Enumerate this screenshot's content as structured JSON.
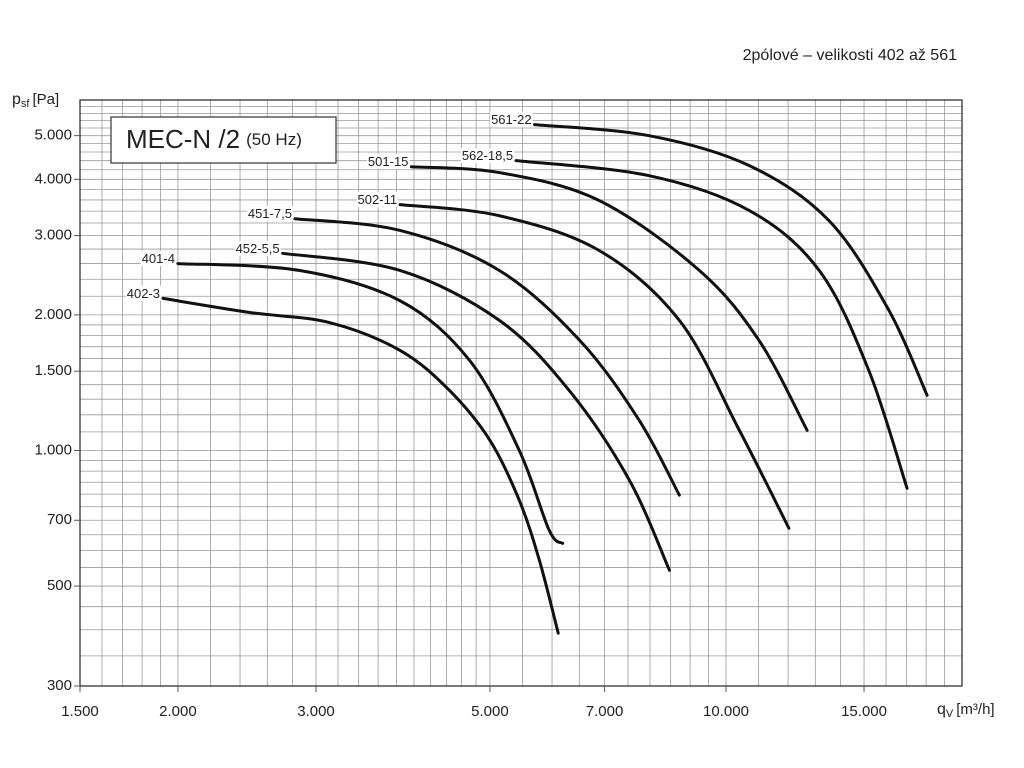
{
  "chart_data": {
    "type": "line",
    "subtitle": "2pólové – velikosti 402 až 561",
    "box_title": "MEC-N /2",
    "box_subtitle": "(50 Hz)",
    "y_label": {
      "symbol": "p",
      "sub": "sf",
      "unit": "[Pa]"
    },
    "x_label": {
      "symbol": "q",
      "sub": "V",
      "unit": "[m³/h]"
    },
    "log_x": true,
    "log_y": true,
    "grid": true,
    "xlim": [
      1500,
      20000
    ],
    "ylim": [
      300,
      6000
    ],
    "xticks": [
      {
        "value": 1500,
        "label": "1.500"
      },
      {
        "value": 2000,
        "label": "2.000"
      },
      {
        "value": 3000,
        "label": "3.000"
      },
      {
        "value": 5000,
        "label": "5.000"
      },
      {
        "value": 7000,
        "label": "7.000"
      },
      {
        "value": 10000,
        "label": "10.000"
      },
      {
        "value": 15000,
        "label": "15.000"
      }
    ],
    "yticks": [
      300,
      500,
      700,
      {
        "value": 1000,
        "label": "1.000"
      },
      {
        "value": 1500,
        "label": "1.500"
      },
      {
        "value": 2000,
        "label": "2.000"
      },
      {
        "value": 3000,
        "label": "3.000"
      },
      {
        "value": 4000,
        "label": "4.000"
      },
      {
        "value": 5000,
        "label": "5.000"
      }
    ],
    "xgrid": [
      1500,
      1600,
      1700,
      1800,
      1900,
      2000,
      2200,
      2400,
      2600,
      2800,
      3000,
      3200,
      3400,
      3600,
      3800,
      4000,
      4200,
      4400,
      4600,
      4800,
      5000,
      5500,
      6000,
      6500,
      7000,
      7500,
      8000,
      8500,
      9000,
      9500,
      10000,
      11000,
      12000,
      13000,
      14000,
      15000,
      16000,
      17000,
      18000,
      19000,
      20000
    ],
    "ygrid": [
      300,
      350,
      400,
      450,
      500,
      550,
      600,
      650,
      700,
      750,
      800,
      850,
      900,
      950,
      1000,
      1100,
      1200,
      1300,
      1400,
      1500,
      1600,
      1700,
      1800,
      1900,
      2000,
      2200,
      2400,
      2600,
      2800,
      3000,
      3200,
      3400,
      3600,
      3800,
      4000,
      4200,
      4400,
      4600,
      4800,
      5000,
      5200,
      5400,
      5600,
      5800,
      6000
    ],
    "series": [
      {
        "name": "402-3",
        "color": "#111111",
        "x": [
          1914,
          2470,
          3120,
          3840,
          4440,
          5000,
          5450,
          5780,
          6110
        ],
        "values": [
          2176,
          2025,
          1923,
          1668,
          1359,
          1053,
          775,
          571,
          393
        ]
      },
      {
        "name": "401-4",
        "color": "#111111",
        "x": [
          2000,
          2860,
          3840,
          4710,
          5450,
          5950,
          6190
        ],
        "values": [
          2600,
          2510,
          2150,
          1585,
          1000,
          665,
          622
        ]
      },
      {
        "name": "452-5,5",
        "color": "#111111",
        "x": [
          2720,
          3840,
          5140,
          6310,
          7530,
          8470
        ],
        "values": [
          2740,
          2510,
          1945,
          1359,
          859,
          542
        ]
      },
      {
        "name": "451-7,5",
        "color": "#111111",
        "x": [
          2820,
          3840,
          5140,
          6510,
          7750,
          8720
        ],
        "values": [
          3270,
          3080,
          2510,
          1755,
          1167,
          796
        ]
      },
      {
        "name": "502-11",
        "color": "#111111",
        "x": [
          3840,
          5140,
          6890,
          8720,
          10400,
          12030
        ],
        "values": [
          3515,
          3320,
          2780,
          1945,
          1109,
          672
        ]
      },
      {
        "name": "501-15",
        "color": "#111111",
        "x": [
          3970,
          5140,
          6890,
          9250,
          11020,
          12690
        ],
        "values": [
          4265,
          4140,
          3590,
          2510,
          1755,
          1109
        ]
      },
      {
        "name": "562-18,5",
        "color": "#111111",
        "x": [
          5400,
          7980,
          10710,
          13150,
          15210,
          17020
        ],
        "values": [
          4400,
          4075,
          3410,
          2510,
          1506,
          824
        ]
      },
      {
        "name": "561-22",
        "color": "#111111",
        "x": [
          5700,
          7980,
          10710,
          13530,
          16140,
          18050
        ],
        "values": [
          5290,
          5000,
          4290,
          3240,
          2046,
          1326
        ]
      }
    ]
  }
}
